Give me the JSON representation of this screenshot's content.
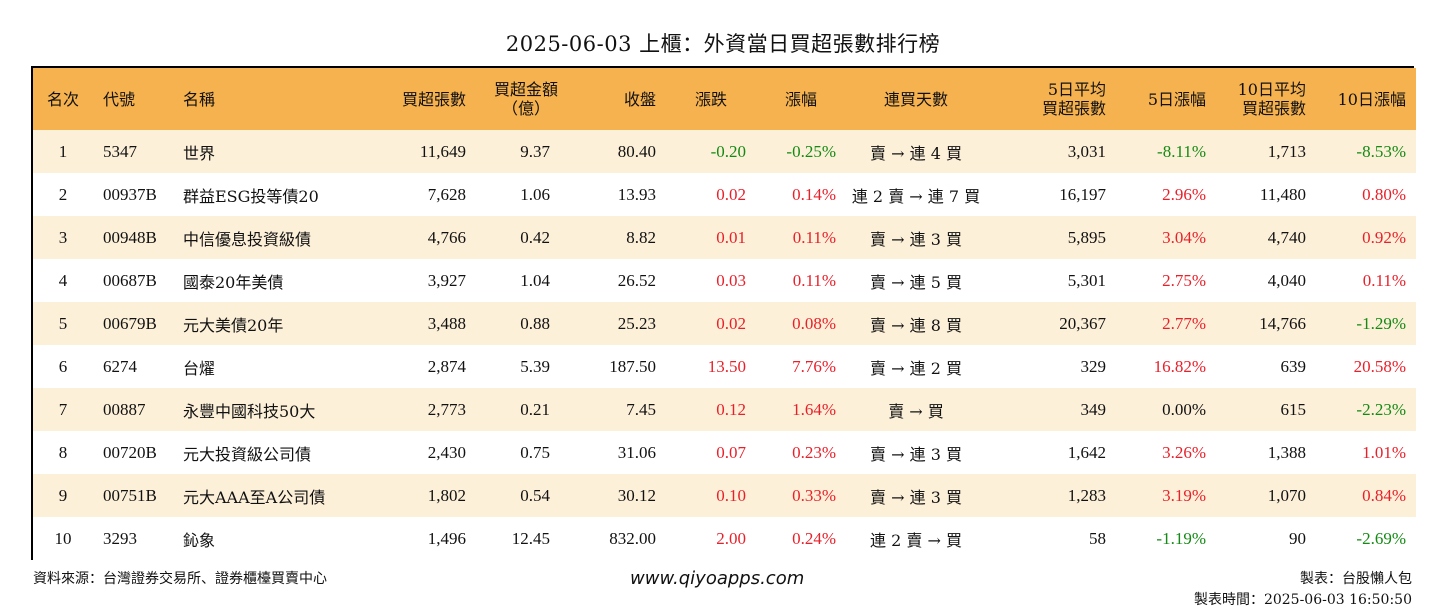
{
  "title": "2025-06-03 上櫃：外資當日買超張數排行榜",
  "headers": [
    {
      "l1": "名次",
      "l2": ""
    },
    {
      "l1": "代號",
      "l2": ""
    },
    {
      "l1": "名稱",
      "l2": ""
    },
    {
      "l1": "買超張數",
      "l2": ""
    },
    {
      "l1": "買超金額",
      "l2": "（億）"
    },
    {
      "l1": "收盤",
      "l2": ""
    },
    {
      "l1": "漲跌",
      "l2": ""
    },
    {
      "l1": "漲幅",
      "l2": ""
    },
    {
      "l1": "連買天數",
      "l2": ""
    },
    {
      "l1": "5日平均",
      "l2": "買超張數"
    },
    {
      "l1": "5日漲幅",
      "l2": ""
    },
    {
      "l1": "10日平均",
      "l2": "買超張數"
    },
    {
      "l1": "10日漲幅",
      "l2": ""
    }
  ],
  "rows": [
    {
      "rank": "1",
      "code": "5347",
      "name": "世界",
      "net_buy": "11,649",
      "amount": "9.37",
      "close": "80.40",
      "change": "-0.20",
      "change_dir": "down",
      "pct": "-0.25%",
      "pct_dir": "down",
      "streak": "賣 → 連 4 買",
      "avg5": "3,031",
      "pct5": "-8.11%",
      "pct5_dir": "down",
      "avg10": "1,713",
      "pct10": "-8.53%",
      "pct10_dir": "down"
    },
    {
      "rank": "2",
      "code": "00937B",
      "name": "群益ESG投等債20",
      "net_buy": "7,628",
      "amount": "1.06",
      "close": "13.93",
      "change": "0.02",
      "change_dir": "up",
      "pct": "0.14%",
      "pct_dir": "up",
      "streak": "連 2 賣 → 連 7 買",
      "avg5": "16,197",
      "pct5": "2.96%",
      "pct5_dir": "up",
      "avg10": "11,480",
      "pct10": "0.80%",
      "pct10_dir": "up"
    },
    {
      "rank": "3",
      "code": "00948B",
      "name": "中信優息投資級債",
      "net_buy": "4,766",
      "amount": "0.42",
      "close": "8.82",
      "change": "0.01",
      "change_dir": "up",
      "pct": "0.11%",
      "pct_dir": "up",
      "streak": "賣 → 連 3 買",
      "avg5": "5,895",
      "pct5": "3.04%",
      "pct5_dir": "up",
      "avg10": "4,740",
      "pct10": "0.92%",
      "pct10_dir": "up"
    },
    {
      "rank": "4",
      "code": "00687B",
      "name": "國泰20年美債",
      "net_buy": "3,927",
      "amount": "1.04",
      "close": "26.52",
      "change": "0.03",
      "change_dir": "up",
      "pct": "0.11%",
      "pct_dir": "up",
      "streak": "賣 → 連 5 買",
      "avg5": "5,301",
      "pct5": "2.75%",
      "pct5_dir": "up",
      "avg10": "4,040",
      "pct10": "0.11%",
      "pct10_dir": "up"
    },
    {
      "rank": "5",
      "code": "00679B",
      "name": "元大美債20年",
      "net_buy": "3,488",
      "amount": "0.88",
      "close": "25.23",
      "change": "0.02",
      "change_dir": "up",
      "pct": "0.08%",
      "pct_dir": "up",
      "streak": "賣 → 連 8 買",
      "avg5": "20,367",
      "pct5": "2.77%",
      "pct5_dir": "up",
      "avg10": "14,766",
      "pct10": "-1.29%",
      "pct10_dir": "down"
    },
    {
      "rank": "6",
      "code": "6274",
      "name": "台燿",
      "net_buy": "2,874",
      "amount": "5.39",
      "close": "187.50",
      "change": "13.50",
      "change_dir": "up",
      "pct": "7.76%",
      "pct_dir": "up",
      "streak": "賣 → 連 2 買",
      "avg5": "329",
      "pct5": "16.82%",
      "pct5_dir": "up",
      "avg10": "639",
      "pct10": "20.58%",
      "pct10_dir": "up"
    },
    {
      "rank": "7",
      "code": "00887",
      "name": "永豐中國科技50大",
      "net_buy": "2,773",
      "amount": "0.21",
      "close": "7.45",
      "change": "0.12",
      "change_dir": "up",
      "pct": "1.64%",
      "pct_dir": "up",
      "streak": "賣 → 買",
      "avg5": "349",
      "pct5": "0.00%",
      "pct5_dir": "flat",
      "avg10": "615",
      "pct10": "-2.23%",
      "pct10_dir": "down"
    },
    {
      "rank": "8",
      "code": "00720B",
      "name": "元大投資級公司債",
      "net_buy": "2,430",
      "amount": "0.75",
      "close": "31.06",
      "change": "0.07",
      "change_dir": "up",
      "pct": "0.23%",
      "pct_dir": "up",
      "streak": "賣 → 連 3 買",
      "avg5": "1,642",
      "pct5": "3.26%",
      "pct5_dir": "up",
      "avg10": "1,388",
      "pct10": "1.01%",
      "pct10_dir": "up"
    },
    {
      "rank": "9",
      "code": "00751B",
      "name": "元大AAA至A公司債",
      "net_buy": "1,802",
      "amount": "0.54",
      "close": "30.12",
      "change": "0.10",
      "change_dir": "up",
      "pct": "0.33%",
      "pct_dir": "up",
      "streak": "賣 → 連 3 買",
      "avg5": "1,283",
      "pct5": "3.19%",
      "pct5_dir": "up",
      "avg10": "1,070",
      "pct10": "0.84%",
      "pct10_dir": "up"
    },
    {
      "rank": "10",
      "code": "3293",
      "name": "鈊象",
      "net_buy": "1,496",
      "amount": "12.45",
      "close": "832.00",
      "change": "2.00",
      "change_dir": "up",
      "pct": "0.24%",
      "pct_dir": "up",
      "streak": "連 2 賣 → 買",
      "avg5": "58",
      "pct5": "-1.19%",
      "pct5_dir": "down",
      "avg10": "90",
      "pct10": "-2.69%",
      "pct10_dir": "down"
    }
  ],
  "colors": {
    "header_bg": "#f6b24f",
    "odd_row_bg": "#fdf0d9",
    "up": "#e8202a",
    "down": "#138a13"
  },
  "footer": {
    "source": "資料來源：台灣證券交易所、證券櫃檯買賣中心",
    "site": "www.qiyoapps.com",
    "author": "製表：台股懶人包",
    "time": "製表時間：2025-06-03 16:50:50"
  }
}
